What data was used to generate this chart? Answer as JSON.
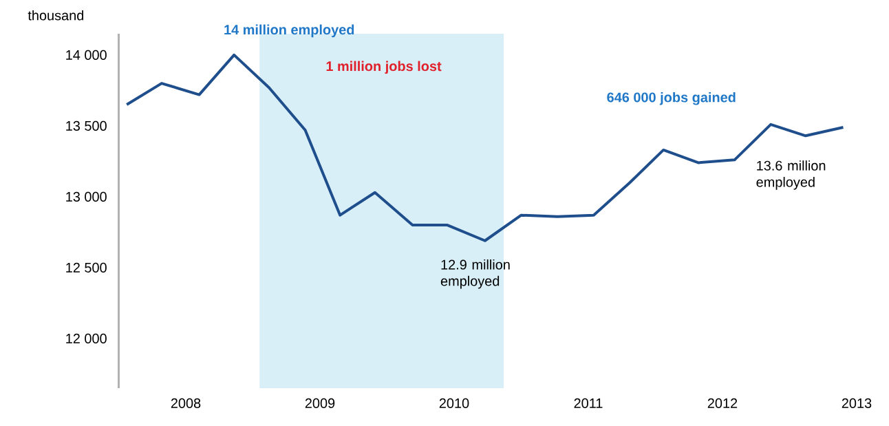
{
  "chart_data": {
    "type": "line",
    "ylabel": "thousand",
    "x": [
      2007.56,
      2007.82,
      2008.1,
      2008.36,
      2008.62,
      2008.89,
      2009.15,
      2009.41,
      2009.69,
      2009.95,
      2010.23,
      2010.5,
      2010.77,
      2011.04,
      2011.31,
      2011.56,
      2011.82,
      2012.09,
      2012.36,
      2012.62,
      2012.9
    ],
    "values": [
      13650,
      13800,
      13720,
      14000,
      13770,
      13470,
      12870,
      13030,
      12800,
      12800,
      12690,
      12870,
      12860,
      12870,
      13100,
      13330,
      13240,
      13260,
      13510,
      13430,
      13490
    ],
    "color": "#1f4e8c",
    "xlim": [
      2007.5,
      2013
    ],
    "xticks": [
      2008,
      2009,
      2010,
      2011,
      2012,
      2013
    ],
    "ylim": [
      11650,
      14150
    ],
    "yticks": [
      {
        "value": 12000,
        "label": "12 000"
      },
      {
        "value": 12500,
        "label": "12 500"
      },
      {
        "value": 13000,
        "label": "13 000"
      },
      {
        "value": 13500,
        "label": "13 500"
      },
      {
        "value": 14000,
        "label": "14 000"
      }
    ],
    "bands": [
      {
        "axis": "x",
        "from": 2008.55,
        "to": 2010.37,
        "color": "#d8eff8"
      }
    ],
    "annotations": [
      "14 million employed",
      "1 million jobs lost",
      "646 000 jobs gained",
      {
        "text": "12.9 million employed",
        "x": 2010.23,
        "y": 12690
      },
      {
        "text": "13.6 million employed",
        "x": 2012.9,
        "y": 13490
      }
    ],
    "grid": false,
    "marker": "none",
    "line_style": "solid"
  }
}
